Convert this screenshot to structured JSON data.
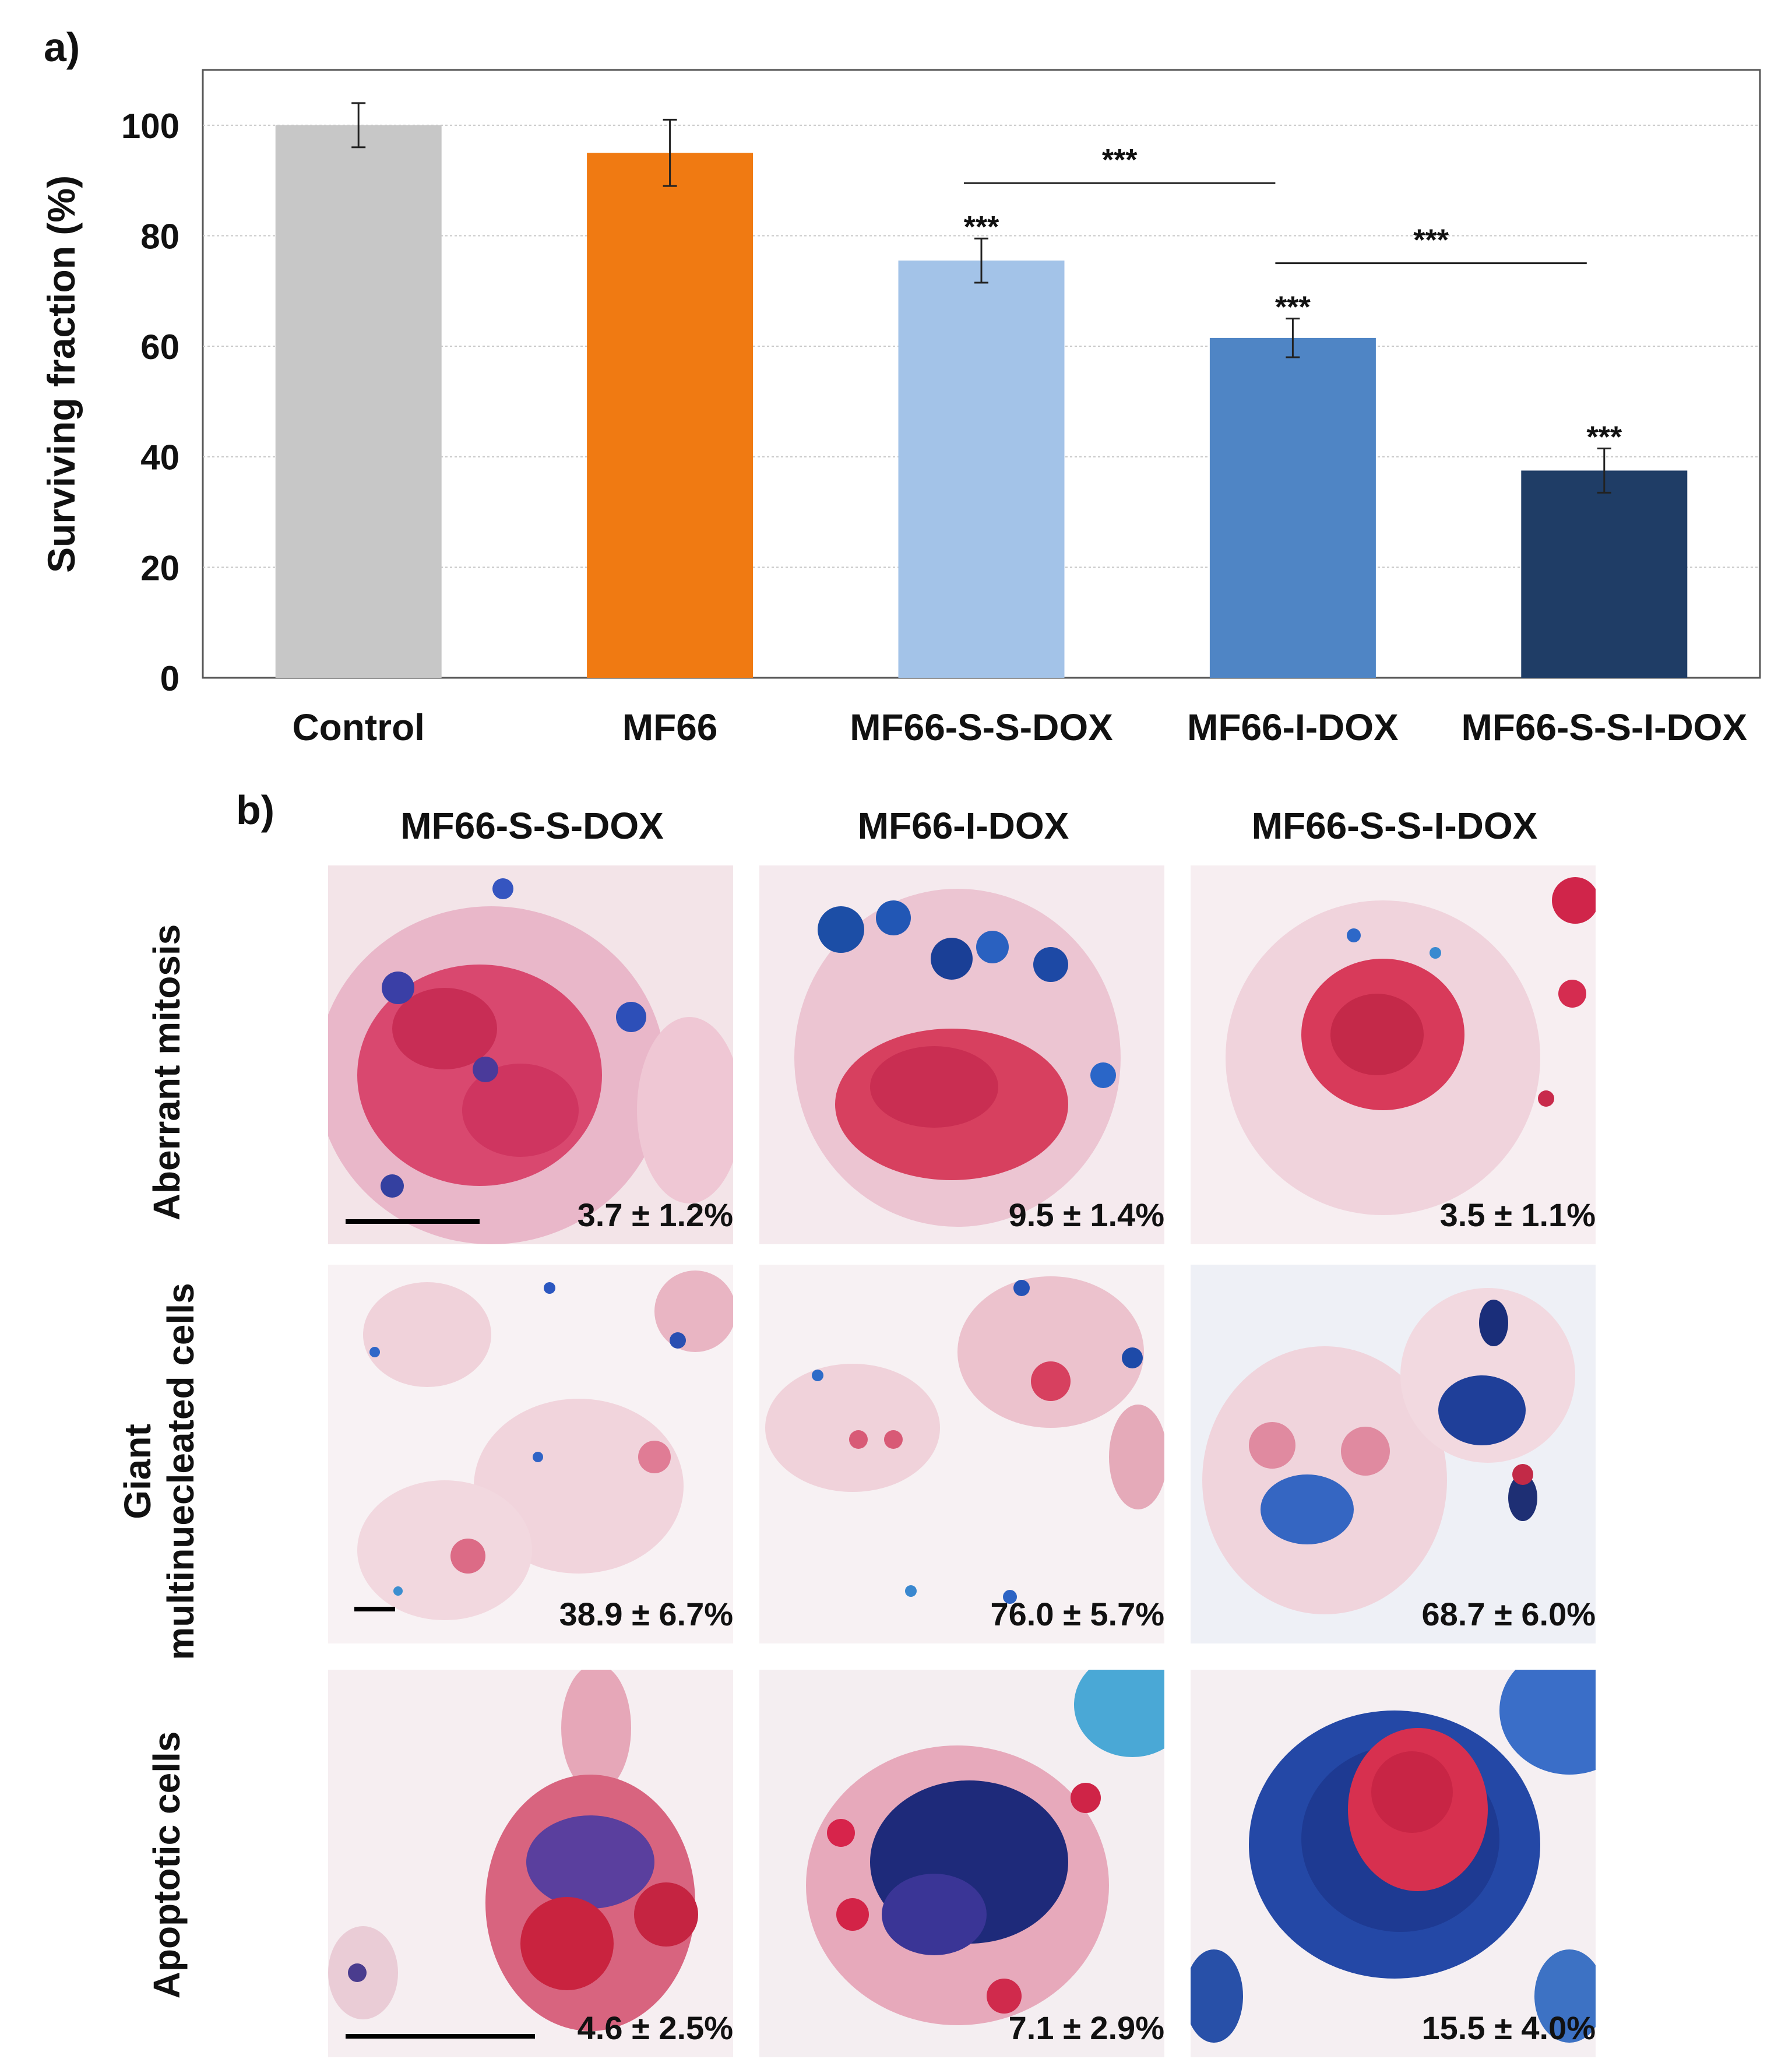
{
  "panel_a": {
    "label": "a)"
  },
  "panel_b": {
    "label": "b)",
    "columns": [
      "MF66-S-S-DOX",
      "MF66-I-DOX",
      "MF66-S-S-I-DOX"
    ],
    "rows": [
      {
        "label_lines": [
          "Aberrant mitosis"
        ],
        "values": [
          "3.7 ± 1.2%",
          "9.5 ± 1.4%",
          "3.5 ± 1.1%"
        ]
      },
      {
        "label_lines": [
          "Giant",
          "multinuecleated cells"
        ],
        "values": [
          "38.9 ± 6.7%",
          "76.0 ± 5.7%",
          "68.7 ± 6.0%"
        ]
      },
      {
        "label_lines": [
          "Apoptotic cells"
        ],
        "values": [
          "4.6 ± 2.5%",
          "7.1 ± 2.9%",
          "15.5 ± 4.0%"
        ]
      }
    ]
  },
  "chart_data": {
    "type": "bar",
    "title": "",
    "xlabel": "",
    "ylabel": "Surviving fraction (%)",
    "ylim": [
      0,
      110
    ],
    "yticks": [
      0,
      20,
      40,
      60,
      80,
      100
    ],
    "grid": true,
    "categories": [
      "Control",
      "MF66",
      "MF66-S-S-DOX",
      "MF66-I-DOX",
      "MF66-S-S-I-DOX"
    ],
    "values": [
      100,
      95,
      75.5,
      61.5,
      37.5
    ],
    "errors": [
      4,
      6,
      4,
      3.5,
      4
    ],
    "colors": [
      "#c7c7c7",
      "#f07a12",
      "#a3c3e8",
      "#4f85c5",
      "#1f3d66"
    ],
    "bar_significance": [
      "",
      "",
      "***",
      "***",
      "***"
    ],
    "comparisons": [
      {
        "from": "MF66-S-S-DOX",
        "to": "MF66-I-DOX",
        "label": "***"
      },
      {
        "from": "MF66-I-DOX",
        "to": "MF66-S-S-I-DOX",
        "label": "***"
      }
    ]
  }
}
